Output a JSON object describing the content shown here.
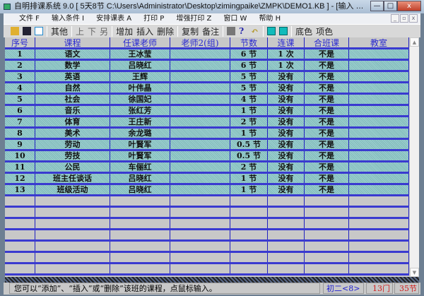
{
  "window": {
    "title": "自明排课系统 9.0 [ 5天8节 C:\\Users\\Administrator\\Desktop\\zimingpaike\\ZMPK\\DEMO1.KB ] - [输入 初二<8> 班的教学计划 【...",
    "min": "—",
    "max": "□",
    "close": "x"
  },
  "menu": {
    "items": [
      "文件 F",
      "输入条件 I",
      "安排课表 A",
      "打印 P",
      "增强打印 Z",
      "窗口 W",
      "帮助 H"
    ],
    "mdi": [
      "_",
      "▫",
      "x"
    ]
  },
  "toolbar": {
    "other": "其他",
    "up": "上",
    "down": "下",
    "another": "另",
    "add": "增加",
    "insert": "插入",
    "delete": "删除",
    "copy": "复制",
    "note": "备注",
    "bgcolor": "底色",
    "itemcolor": "项色"
  },
  "table": {
    "headers": [
      "序号",
      "课程",
      "任课老师",
      "老师2(组)",
      "节数",
      "连课",
      "合班课",
      "教室"
    ],
    "rows": [
      [
        "1",
        "语文",
        "王冰莹",
        "",
        "6 节",
        "1 次",
        "不是",
        ""
      ],
      [
        "2",
        "数学",
        "吕晓红",
        "",
        "6 节",
        "1 次",
        "不是",
        ""
      ],
      [
        "3",
        "英语",
        "王辉",
        "",
        "5 节",
        "没有",
        "不是",
        ""
      ],
      [
        "4",
        "自然",
        "叶伟晶",
        "",
        "5 节",
        "没有",
        "不是",
        ""
      ],
      [
        "5",
        "社会",
        "徐国妃",
        "",
        "4 节",
        "没有",
        "不是",
        ""
      ],
      [
        "6",
        "音乐",
        "张红芳",
        "",
        "1 节",
        "没有",
        "不是",
        ""
      ],
      [
        "7",
        "体育",
        "王庄新",
        "",
        "2 节",
        "没有",
        "不是",
        ""
      ],
      [
        "8",
        "美术",
        "余龙璐",
        "",
        "1 节",
        "没有",
        "不是",
        ""
      ],
      [
        "9",
        "劳动",
        "叶賢军",
        "",
        "0.5 节",
        "没有",
        "不是",
        ""
      ],
      [
        "10",
        "劳技",
        "叶賢军",
        "",
        "0.5 节",
        "没有",
        "不是",
        ""
      ],
      [
        "11",
        "公民",
        "车俪红",
        "",
        "2 节",
        "没有",
        "不是",
        ""
      ],
      [
        "12",
        "班主任谈话",
        "吕晓红",
        "",
        "1 节",
        "没有",
        "不是",
        ""
      ],
      [
        "13",
        "班级活动",
        "吕晓红",
        "",
        "1 节",
        "没有",
        "不是",
        ""
      ]
    ]
  },
  "status": {
    "message": "您可以“添加”、“插入”或“删除”该班的课程，点鼠标输入。",
    "class": "初二<8>",
    "course_count": "13门",
    "period_count": "35节"
  },
  "colors": {
    "row_fill": "#8fc6c6",
    "grid_line": "#3a3ad0",
    "header_text": "#2a2ad0",
    "status_red": "#d02020"
  }
}
